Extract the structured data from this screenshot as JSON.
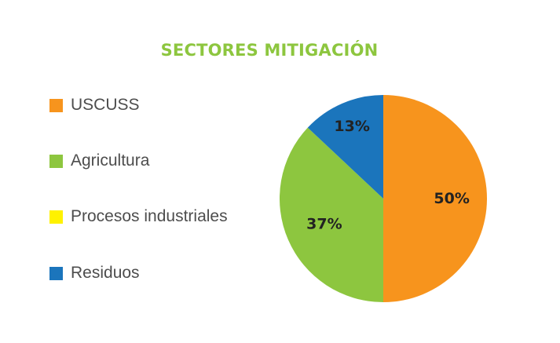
{
  "chart_data": {
    "type": "pie",
    "title": "SECTORES MITIGACIÓN",
    "title_color": "#8dc63f",
    "legend_position": "left",
    "categories": [
      "USCUSS",
      "Agricultura",
      "Procesos industriales",
      "Residuos"
    ],
    "values": [
      50,
      37,
      0,
      13
    ],
    "data_labels": [
      "50%",
      "37%",
      "",
      "13%"
    ],
    "colors": [
      "#f7941d",
      "#8dc63f",
      "#fff200",
      "#1b75bc"
    ],
    "start_angle_deg": 0,
    "direction": "clockwise"
  }
}
